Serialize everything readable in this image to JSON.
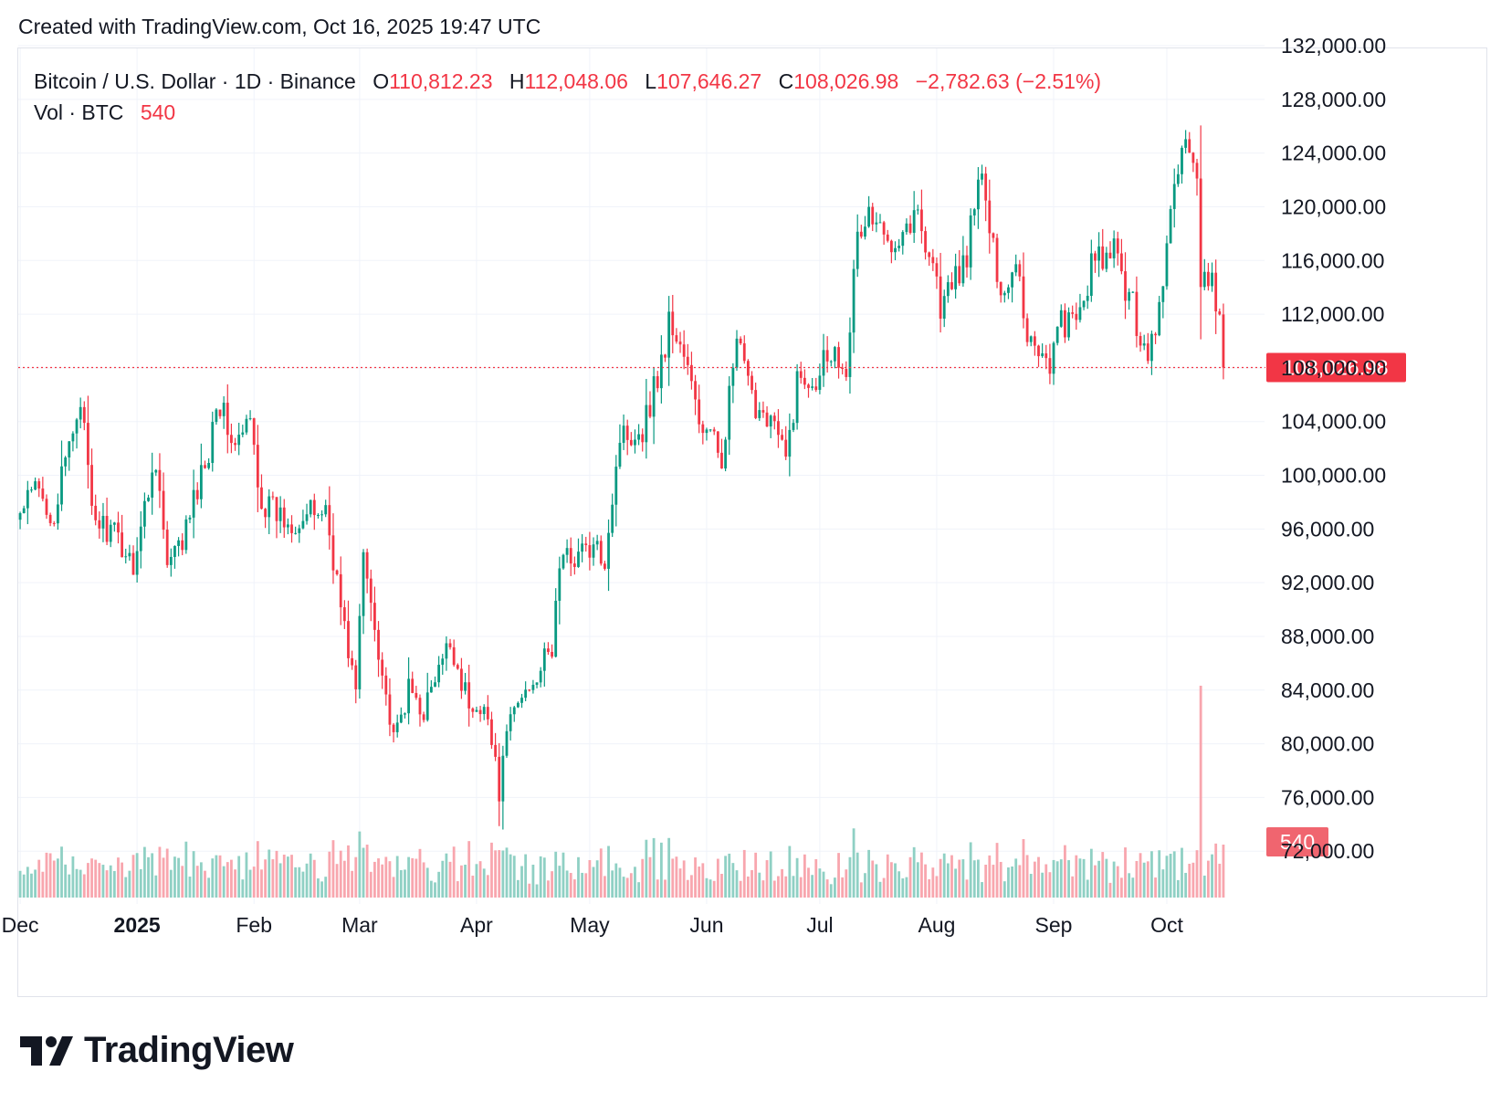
{
  "header": {
    "created_text": "Created with TradingView.com, Oct 16, 2025 19:47 UTC"
  },
  "legend": {
    "symbol": "Bitcoin / U.S. Dollar · 1D · Binance",
    "open_label": "O",
    "open": "110,812.23",
    "high_label": "H",
    "high": "112,048.06",
    "low_label": "L",
    "low": "107,646.27",
    "close_label": "C",
    "close": "108,026.98",
    "change": "−2,782.63 (−2.51%)",
    "volume_label": "Vol · BTC",
    "volume": "540"
  },
  "brand": {
    "name": "TradingView",
    "logo_icon": "tradingview-logo-icon"
  },
  "colors": {
    "up": "#089981",
    "down": "#f23645",
    "grid": "#f0f3fa",
    "text": "#131722",
    "volume_up": "#8fd0c4",
    "volume_down": "#f8a6ae"
  },
  "chart_data": {
    "type": "candlestick",
    "symbol": "BTCUSD",
    "interval": "1D",
    "exchange": "Binance",
    "x_range": [
      "2024-12-01",
      "2025-10-16"
    ],
    "ylim": [
      68000,
      132000
    ],
    "y_ticks": [
      72000,
      76000,
      80000,
      84000,
      88000,
      92000,
      96000,
      100000,
      104000,
      108000,
      112000,
      116000,
      120000,
      124000,
      128000,
      132000
    ],
    "y_tick_labels": [
      "72,000.00",
      "76,000.00",
      "80,000.00",
      "84,000.00",
      "88,000.00",
      "92,000.00",
      "96,000.00",
      "100,000.00",
      "104,000.00",
      "108,000.00",
      "112,000.00",
      "116,000.00",
      "120,000.00",
      "124,000.00",
      "128,000.00",
      "132,000.00"
    ],
    "x_ticks": [
      {
        "date": "2024-12-01",
        "label": "Dec",
        "bold": false
      },
      {
        "date": "2025-01-01",
        "label": "2025",
        "bold": true
      },
      {
        "date": "2025-02-01",
        "label": "Feb",
        "bold": false
      },
      {
        "date": "2025-03-01",
        "label": "Mar",
        "bold": false
      },
      {
        "date": "2025-04-01",
        "label": "Apr",
        "bold": false
      },
      {
        "date": "2025-05-01",
        "label": "May",
        "bold": false
      },
      {
        "date": "2025-06-01",
        "label": "Jun",
        "bold": false
      },
      {
        "date": "2025-07-01",
        "label": "Jul",
        "bold": false
      },
      {
        "date": "2025-08-01",
        "label": "Aug",
        "bold": false
      },
      {
        "date": "2025-09-01",
        "label": "Sep",
        "bold": false
      },
      {
        "date": "2025-10-01",
        "label": "Oct",
        "bold": false
      }
    ],
    "last_price": 108026.98,
    "last_price_label": "108,026.98",
    "last_volume_label": "540",
    "close_keypoints": [
      [
        "2024-12-01",
        97000
      ],
      [
        "2024-12-05",
        99000
      ],
      [
        "2024-12-10",
        97000
      ],
      [
        "2024-12-17",
        106000
      ],
      [
        "2024-12-20",
        97000
      ],
      [
        "2024-12-26",
        95500
      ],
      [
        "2024-12-31",
        93500
      ],
      [
        "2025-01-06",
        101500
      ],
      [
        "2025-01-09",
        93000
      ],
      [
        "2025-01-13",
        95000
      ],
      [
        "2025-01-20",
        102000
      ],
      [
        "2025-01-22",
        106000
      ],
      [
        "2025-01-27",
        102000
      ],
      [
        "2025-01-31",
        104000
      ],
      [
        "2025-02-03",
        98000
      ],
      [
        "2025-02-10",
        96500
      ],
      [
        "2025-02-20",
        97500
      ],
      [
        "2025-02-25",
        88500
      ],
      [
        "2025-02-28",
        84000
      ],
      [
        "2025-03-02",
        94000
      ],
      [
        "2025-03-05",
        89000
      ],
      [
        "2025-03-10",
        80000
      ],
      [
        "2025-03-14",
        84000
      ],
      [
        "2025-03-18",
        82500
      ],
      [
        "2025-03-25",
        87500
      ],
      [
        "2025-03-31",
        82000
      ],
      [
        "2025-04-03",
        83500
      ],
      [
        "2025-04-07",
        76500
      ],
      [
        "2025-04-10",
        82000
      ],
      [
        "2025-04-15",
        84500
      ],
      [
        "2025-04-21",
        87000
      ],
      [
        "2025-04-23",
        93500
      ],
      [
        "2025-04-30",
        94500
      ],
      [
        "2025-05-05",
        94000
      ],
      [
        "2025-05-09",
        103000
      ],
      [
        "2025-05-15",
        103500
      ],
      [
        "2025-05-21",
        109500
      ],
      [
        "2025-05-22",
        111500
      ],
      [
        "2025-05-26",
        109000
      ],
      [
        "2025-05-30",
        104000
      ],
      [
        "2025-06-05",
        101500
      ],
      [
        "2025-06-09",
        110000
      ],
      [
        "2025-06-13",
        105500
      ],
      [
        "2025-06-18",
        104500
      ],
      [
        "2025-06-22",
        101000
      ],
      [
        "2025-06-25",
        107000
      ],
      [
        "2025-06-30",
        107500
      ],
      [
        "2025-07-03",
        109500
      ],
      [
        "2025-07-08",
        108500
      ],
      [
        "2025-07-11",
        117500
      ],
      [
        "2025-07-14",
        119500
      ],
      [
        "2025-07-18",
        117500
      ],
      [
        "2025-07-23",
        118500
      ],
      [
        "2025-07-27",
        119300
      ],
      [
        "2025-07-31",
        116000
      ],
      [
        "2025-08-02",
        112500
      ],
      [
        "2025-08-05",
        114000
      ],
      [
        "2025-08-09",
        116500
      ],
      [
        "2025-08-13",
        123000
      ],
      [
        "2025-08-15",
        117500
      ],
      [
        "2025-08-19",
        113500
      ],
      [
        "2025-08-22",
        116500
      ],
      [
        "2025-08-25",
        110500
      ],
      [
        "2025-08-31",
        108500
      ],
      [
        "2025-09-03",
        111500
      ],
      [
        "2025-09-07",
        111000
      ],
      [
        "2025-09-11",
        115500
      ],
      [
        "2025-09-14",
        116000
      ],
      [
        "2025-09-17",
        116500
      ],
      [
        "2025-09-22",
        112500
      ],
      [
        "2025-09-25",
        109500
      ],
      [
        "2025-09-27",
        109500
      ],
      [
        "2025-09-30",
        114000
      ],
      [
        "2025-10-03",
        122500
      ],
      [
        "2025-10-06",
        124800
      ],
      [
        "2025-10-09",
        121500
      ],
      [
        "2025-10-10",
        113000
      ],
      [
        "2025-10-12",
        115000
      ],
      [
        "2025-10-14",
        113000
      ],
      [
        "2025-10-15",
        110800
      ],
      [
        "2025-10-16",
        108027
      ]
    ],
    "volume_spikes": [
      {
        "date": "2025-10-10",
        "relative": 1.0
      }
    ]
  }
}
